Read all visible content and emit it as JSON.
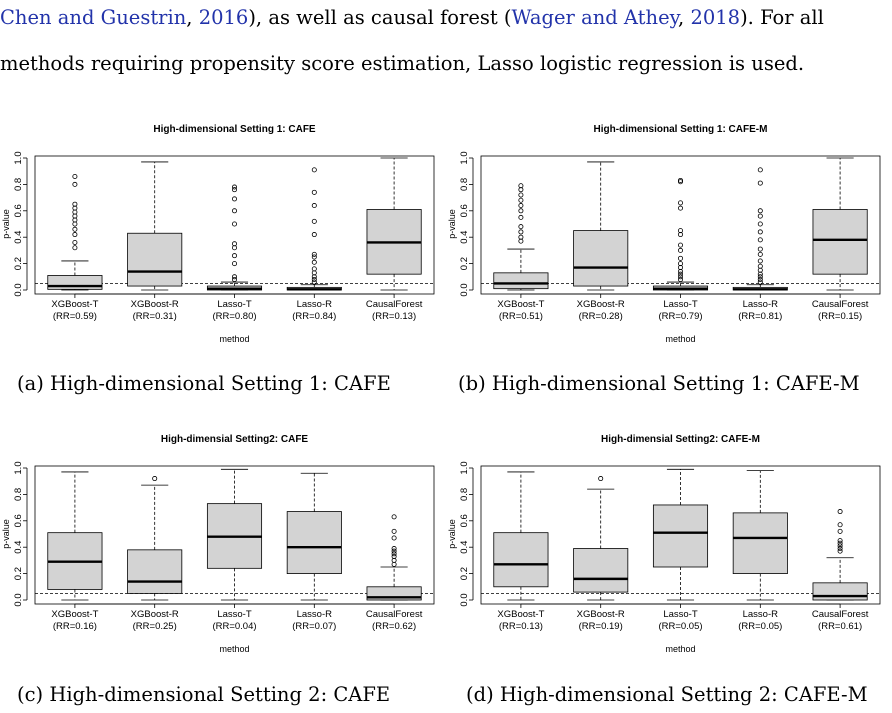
{
  "paragraph": {
    "cite1": "Chen and Guestrin",
    "cite1_sep": ", ",
    "cite1_year": "2016",
    "mid1": "), as well as causal forest (",
    "cite2": "Wager and Athey",
    "cite2_sep": ", ",
    "cite2_year": "2018",
    "end1": "). For all",
    "line2": "methods requiring propensity score estimation, Lasso logistic regression is used.",
    "colors": {
      "citation": "#2233aa"
    }
  },
  "captions": [
    "(a) High-dimensional Setting 1: CAFE",
    "(b) High-dimensional Setting 1: CAFE-M",
    "(c) High-dimensional Setting 2: CAFE",
    "(d) High-dimensional Setting 2: CAFE-M"
  ],
  "chart_data": [
    {
      "type": "boxplot",
      "title": "High-dimensional Setting 1: CAFE",
      "xlabel": "method",
      "ylabel": "p-value",
      "ylim": [
        0,
        1
      ],
      "yticks": [
        "0.0",
        "0.2",
        "0.4",
        "0.6",
        "0.8",
        "1.0"
      ],
      "reference_line": 0.05,
      "categories": [
        {
          "name": "XGBoost-T",
          "rr": "(RR=0.59)",
          "whisker_low": 0.0,
          "q1": 0.005,
          "median": 0.03,
          "q3": 0.11,
          "whisker_high": 0.22,
          "outliers": [
            0.32,
            0.36,
            0.42,
            0.46,
            0.5,
            0.53,
            0.56,
            0.59,
            0.62,
            0.65,
            0.8,
            0.86
          ]
        },
        {
          "name": "XGBoost-R",
          "rr": "(RR=0.31)",
          "whisker_low": 0.0,
          "q1": 0.03,
          "median": 0.14,
          "q3": 0.43,
          "whisker_high": 0.97,
          "outliers": []
        },
        {
          "name": "Lasso-T",
          "rr": "(RR=0.80)",
          "whisker_low": 0.0,
          "q1": 0.0,
          "median": 0.01,
          "q3": 0.03,
          "whisker_high": 0.06,
          "outliers": [
            0.08,
            0.1,
            0.2,
            0.26,
            0.32,
            0.35,
            0.5,
            0.6,
            0.69,
            0.76,
            0.78
          ]
        },
        {
          "name": "Lasso-R",
          "rr": "(RR=0.84)",
          "whisker_low": 0.0,
          "q1": 0.0,
          "median": 0.005,
          "q3": 0.02,
          "whisker_high": 0.04,
          "outliers": [
            0.06,
            0.08,
            0.1,
            0.13,
            0.16,
            0.21,
            0.25,
            0.27,
            0.42,
            0.52,
            0.64,
            0.74,
            0.91
          ]
        },
        {
          "name": "CausalForest",
          "rr": "(RR=0.13)",
          "whisker_low": 0.0,
          "q1": 0.12,
          "median": 0.36,
          "q3": 0.61,
          "whisker_high": 1.0,
          "outliers": []
        }
      ]
    },
    {
      "type": "boxplot",
      "title": "High-dimensional Setting 1: CAFE-M",
      "xlabel": "method",
      "ylabel": "p-value",
      "ylim": [
        0,
        1
      ],
      "yticks": [
        "0.0",
        "0.2",
        "0.4",
        "0.6",
        "0.8",
        "1.0"
      ],
      "reference_line": 0.05,
      "categories": [
        {
          "name": "XGBoost-T",
          "rr": "(RR=0.51)",
          "whisker_low": 0.0,
          "q1": 0.01,
          "median": 0.05,
          "q3": 0.13,
          "whisker_high": 0.31,
          "outliers": [
            0.37,
            0.4,
            0.44,
            0.48,
            0.55,
            0.6,
            0.64,
            0.68,
            0.72,
            0.76,
            0.79
          ]
        },
        {
          "name": "XGBoost-R",
          "rr": "(RR=0.28)",
          "whisker_low": 0.0,
          "q1": 0.03,
          "median": 0.17,
          "q3": 0.45,
          "whisker_high": 0.97,
          "outliers": []
        },
        {
          "name": "Lasso-T",
          "rr": "(RR=0.79)",
          "whisker_low": 0.0,
          "q1": 0.0,
          "median": 0.01,
          "q3": 0.03,
          "whisker_high": 0.06,
          "outliers": [
            0.08,
            0.1,
            0.12,
            0.14,
            0.17,
            0.2,
            0.24,
            0.3,
            0.34,
            0.42,
            0.45,
            0.62,
            0.66,
            0.82,
            0.83
          ]
        },
        {
          "name": "Lasso-R",
          "rr": "(RR=0.81)",
          "whisker_low": 0.0,
          "q1": 0.0,
          "median": 0.005,
          "q3": 0.02,
          "whisker_high": 0.04,
          "outliers": [
            0.06,
            0.08,
            0.1,
            0.12,
            0.15,
            0.18,
            0.22,
            0.27,
            0.31,
            0.38,
            0.44,
            0.5,
            0.56,
            0.6,
            0.81,
            0.91
          ]
        },
        {
          "name": "CausalForest",
          "rr": "(RR=0.15)",
          "whisker_low": 0.0,
          "q1": 0.12,
          "median": 0.38,
          "q3": 0.61,
          "whisker_high": 1.0,
          "outliers": []
        }
      ]
    },
    {
      "type": "boxplot",
      "title": "High-dimensial Setting2: CAFE",
      "xlabel": "method",
      "ylabel": "p-value",
      "ylim": [
        0,
        1
      ],
      "yticks": [
        "0.0",
        "0.2",
        "0.4",
        "0.6",
        "0.8",
        "1.0"
      ],
      "reference_line": 0.05,
      "categories": [
        {
          "name": "XGBoost-T",
          "rr": "(RR=0.16)",
          "whisker_low": 0.0,
          "q1": 0.08,
          "median": 0.29,
          "q3": 0.51,
          "whisker_high": 0.97,
          "outliers": []
        },
        {
          "name": "XGBoost-R",
          "rr": "(RR=0.25)",
          "whisker_low": 0.0,
          "q1": 0.05,
          "median": 0.14,
          "q3": 0.38,
          "whisker_high": 0.87,
          "outliers": [
            0.92
          ]
        },
        {
          "name": "Lasso-T",
          "rr": "(RR=0.04)",
          "whisker_low": 0.0,
          "q1": 0.24,
          "median": 0.48,
          "q3": 0.73,
          "whisker_high": 0.99,
          "outliers": []
        },
        {
          "name": "Lasso-R",
          "rr": "(RR=0.07)",
          "whisker_low": 0.0,
          "q1": 0.2,
          "median": 0.4,
          "q3": 0.67,
          "whisker_high": 0.96,
          "outliers": []
        },
        {
          "name": "CausalForest",
          "rr": "(RR=0.62)",
          "whisker_low": 0.0,
          "q1": 0.0,
          "median": 0.02,
          "q3": 0.1,
          "whisker_high": 0.25,
          "outliers": [
            0.27,
            0.3,
            0.33,
            0.35,
            0.37,
            0.39,
            0.47,
            0.52,
            0.63
          ]
        }
      ]
    },
    {
      "type": "boxplot",
      "title": "High-dimensial Setting2: CAFE-M",
      "xlabel": "method",
      "ylabel": "p-value",
      "ylim": [
        0,
        1
      ],
      "yticks": [
        "0.0",
        "0.2",
        "0.4",
        "0.6",
        "0.8",
        "1.0"
      ],
      "reference_line": 0.05,
      "categories": [
        {
          "name": "XGBoost-T",
          "rr": "(RR=0.13)",
          "whisker_low": 0.0,
          "q1": 0.1,
          "median": 0.27,
          "q3": 0.51,
          "whisker_high": 0.97,
          "outliers": []
        },
        {
          "name": "XGBoost-R",
          "rr": "(RR=0.19)",
          "whisker_low": 0.0,
          "q1": 0.06,
          "median": 0.16,
          "q3": 0.39,
          "whisker_high": 0.84,
          "outliers": [
            0.92
          ]
        },
        {
          "name": "Lasso-T",
          "rr": "(RR=0.05)",
          "whisker_low": 0.0,
          "q1": 0.25,
          "median": 0.51,
          "q3": 0.72,
          "whisker_high": 0.99,
          "outliers": []
        },
        {
          "name": "Lasso-R",
          "rr": "(RR=0.05)",
          "whisker_low": 0.0,
          "q1": 0.2,
          "median": 0.47,
          "q3": 0.66,
          "whisker_high": 0.98,
          "outliers": []
        },
        {
          "name": "CausalForest",
          "rr": "(RR=0.61)",
          "whisker_low": 0.0,
          "q1": 0.0,
          "median": 0.03,
          "q3": 0.13,
          "whisker_high": 0.32,
          "outliers": [
            0.37,
            0.39,
            0.41,
            0.43,
            0.45,
            0.52,
            0.57,
            0.67
          ]
        }
      ]
    }
  ]
}
